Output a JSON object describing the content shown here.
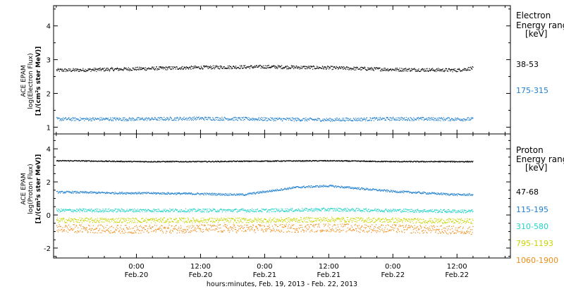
{
  "chart_data": [
    {
      "type": "scatter",
      "panel": "electron",
      "ylabel_lines": [
        "ACE EPAM",
        "log(Electron Flux)",
        "[1/(cm²s ster MeV)]"
      ],
      "ylim": [
        0.8,
        4.6
      ],
      "yticks": [
        1,
        2,
        3,
        4
      ],
      "legend_title": [
        "Electron",
        "Energy range",
        "[keV]"
      ],
      "series": [
        {
          "name": "38-53",
          "color": "#000000",
          "x_hours": [
            -12,
            0,
            12,
            24,
            36,
            48,
            60,
            63
          ],
          "values": [
            2.7,
            2.74,
            2.78,
            2.8,
            2.77,
            2.72,
            2.7,
            2.76
          ],
          "spread": 0.05
        },
        {
          "name": "175-315",
          "color": "#1f7fd0",
          "x_hours": [
            -12,
            0,
            12,
            24,
            36,
            48,
            60,
            63
          ],
          "values": [
            1.25,
            1.25,
            1.27,
            1.25,
            1.23,
            1.26,
            1.25,
            1.25
          ],
          "spread": 0.05
        }
      ]
    },
    {
      "type": "scatter",
      "panel": "proton",
      "ylabel_lines": [
        "ACE EPAM",
        "log(Proton Flux)",
        "[1/(cm²s ster MeV)]"
      ],
      "ylim": [
        -2.6,
        4.9
      ],
      "yticks": [
        -2,
        0,
        2,
        4
      ],
      "legend_title": [
        "Proton",
        "Energy range",
        "[keV]"
      ],
      "series": [
        {
          "name": "47-68",
          "color": "#000000",
          "x_hours": [
            -12,
            0,
            12,
            24,
            36,
            48,
            60,
            63
          ],
          "values": [
            3.3,
            3.25,
            3.25,
            3.28,
            3.3,
            3.25,
            3.25,
            3.25
          ],
          "spread": 0.03
        },
        {
          "name": "115-195",
          "color": "#1f7fd0",
          "x_hours": [
            -12,
            -4,
            0,
            12,
            20,
            30,
            36,
            48,
            60,
            63
          ],
          "values": [
            1.4,
            1.35,
            1.35,
            1.3,
            1.25,
            1.7,
            1.78,
            1.45,
            1.25,
            1.25
          ],
          "spread": 0.06
        },
        {
          "name": "310-580",
          "color": "#22d3c8",
          "x_hours": [
            -12,
            0,
            12,
            24,
            36,
            48,
            60,
            63
          ],
          "values": [
            0.3,
            0.3,
            0.3,
            0.3,
            0.35,
            0.3,
            0.25,
            0.25
          ],
          "spread": 0.1
        },
        {
          "name": "795-1193",
          "color": "#c8d400",
          "x_hours": [
            -12,
            0,
            12,
            24,
            36,
            48,
            60,
            63
          ],
          "values": [
            -0.3,
            -0.3,
            -0.3,
            -0.3,
            -0.25,
            -0.3,
            -0.35,
            -0.35
          ],
          "spread": 0.15
        },
        {
          "name": "1060-1900",
          "color": "#f08c16",
          "x_hours": [
            -12,
            0,
            12,
            24,
            36,
            48,
            60,
            63
          ],
          "values": [
            -0.8,
            -0.85,
            -0.8,
            -0.8,
            -0.75,
            -0.8,
            -0.9,
            -0.9
          ],
          "spread": 0.25
        }
      ]
    }
  ],
  "xaxis": {
    "range_hours": [
      -15.5,
      70
    ],
    "ticks": [
      {
        "hours": 0,
        "time": "0:00",
        "date": "Feb.20"
      },
      {
        "hours": 12,
        "time": "12:00",
        "date": "Feb.20"
      },
      {
        "hours": 24,
        "time": "0:00",
        "date": "Feb.21"
      },
      {
        "hours": 36,
        "time": "12:00",
        "date": "Feb.21"
      },
      {
        "hours": 48,
        "time": "0:00",
        "date": "Feb.22"
      },
      {
        "hours": 60,
        "time": "12:00",
        "date": "Feb.22"
      }
    ],
    "minor_tick_every_hours": 3,
    "label": "hours:minutes, Feb. 19, 2013 - Feb. 22, 2013"
  }
}
